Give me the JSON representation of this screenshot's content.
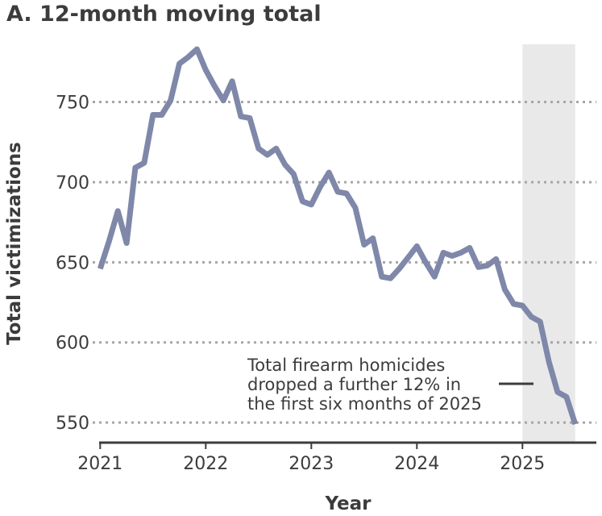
{
  "chart_data": {
    "type": "line",
    "title": "A. 12-month moving total",
    "xlabel": "Year",
    "ylabel": "Total victimizations",
    "xlim": [
      2020.99,
      2025.7
    ],
    "ylim": [
      543,
      786
    ],
    "grid": "horizontal dotted",
    "x_ticks": [
      {
        "value": 2021,
        "label": "2021"
      },
      {
        "value": 2022,
        "label": "2022"
      },
      {
        "value": 2023,
        "label": "2023"
      },
      {
        "value": 2024,
        "label": "2024"
      },
      {
        "value": 2025,
        "label": "2025"
      }
    ],
    "y_ticks": [
      {
        "value": 550,
        "label": "550"
      },
      {
        "value": 600,
        "label": "600"
      },
      {
        "value": 650,
        "label": "650"
      },
      {
        "value": 700,
        "label": "700"
      },
      {
        "value": 750,
        "label": "750"
      }
    ],
    "highlight_range": [
      2025.0,
      2025.5
    ],
    "highlight_color": "#e9e9e9",
    "line_color": "#7f88a9",
    "annotation": {
      "lines": [
        "Total firearm homicides",
        "dropped a further 12% in",
        "the first six months of 2025"
      ]
    },
    "series": [
      {
        "x": [
          2021.0,
          2021.083,
          2021.167,
          2021.25,
          2021.333,
          2021.417,
          2021.5,
          2021.583,
          2021.667,
          2021.75,
          2021.833,
          2021.917,
          2022.0,
          2022.083,
          2022.167,
          2022.25,
          2022.333,
          2022.417,
          2022.5,
          2022.583,
          2022.667,
          2022.75,
          2022.833,
          2022.917,
          2023.0,
          2023.083,
          2023.167,
          2023.25,
          2023.333,
          2023.417,
          2023.5,
          2023.583,
          2023.667,
          2023.75,
          2023.833,
          2023.917,
          2024.0,
          2024.083,
          2024.167,
          2024.25,
          2024.333,
          2024.417,
          2024.5,
          2024.583,
          2024.667,
          2024.75,
          2024.833,
          2024.917,
          2025.0,
          2025.083,
          2025.167,
          2025.25,
          2025.333,
          2025.417,
          2025.5
        ],
        "y": [
          646,
          663,
          682,
          662,
          709,
          712,
          742,
          742,
          751,
          774,
          778,
          783,
          770,
          760,
          751,
          763,
          741,
          740,
          721,
          717,
          721,
          711,
          705,
          688,
          686,
          697,
          706,
          694,
          693,
          684,
          661,
          665,
          641,
          640,
          646,
          653,
          660,
          650,
          641,
          656,
          654,
          656,
          659,
          647,
          648,
          652,
          633,
          624,
          623,
          616,
          613,
          588,
          569,
          566,
          549
        ]
      }
    ]
  }
}
